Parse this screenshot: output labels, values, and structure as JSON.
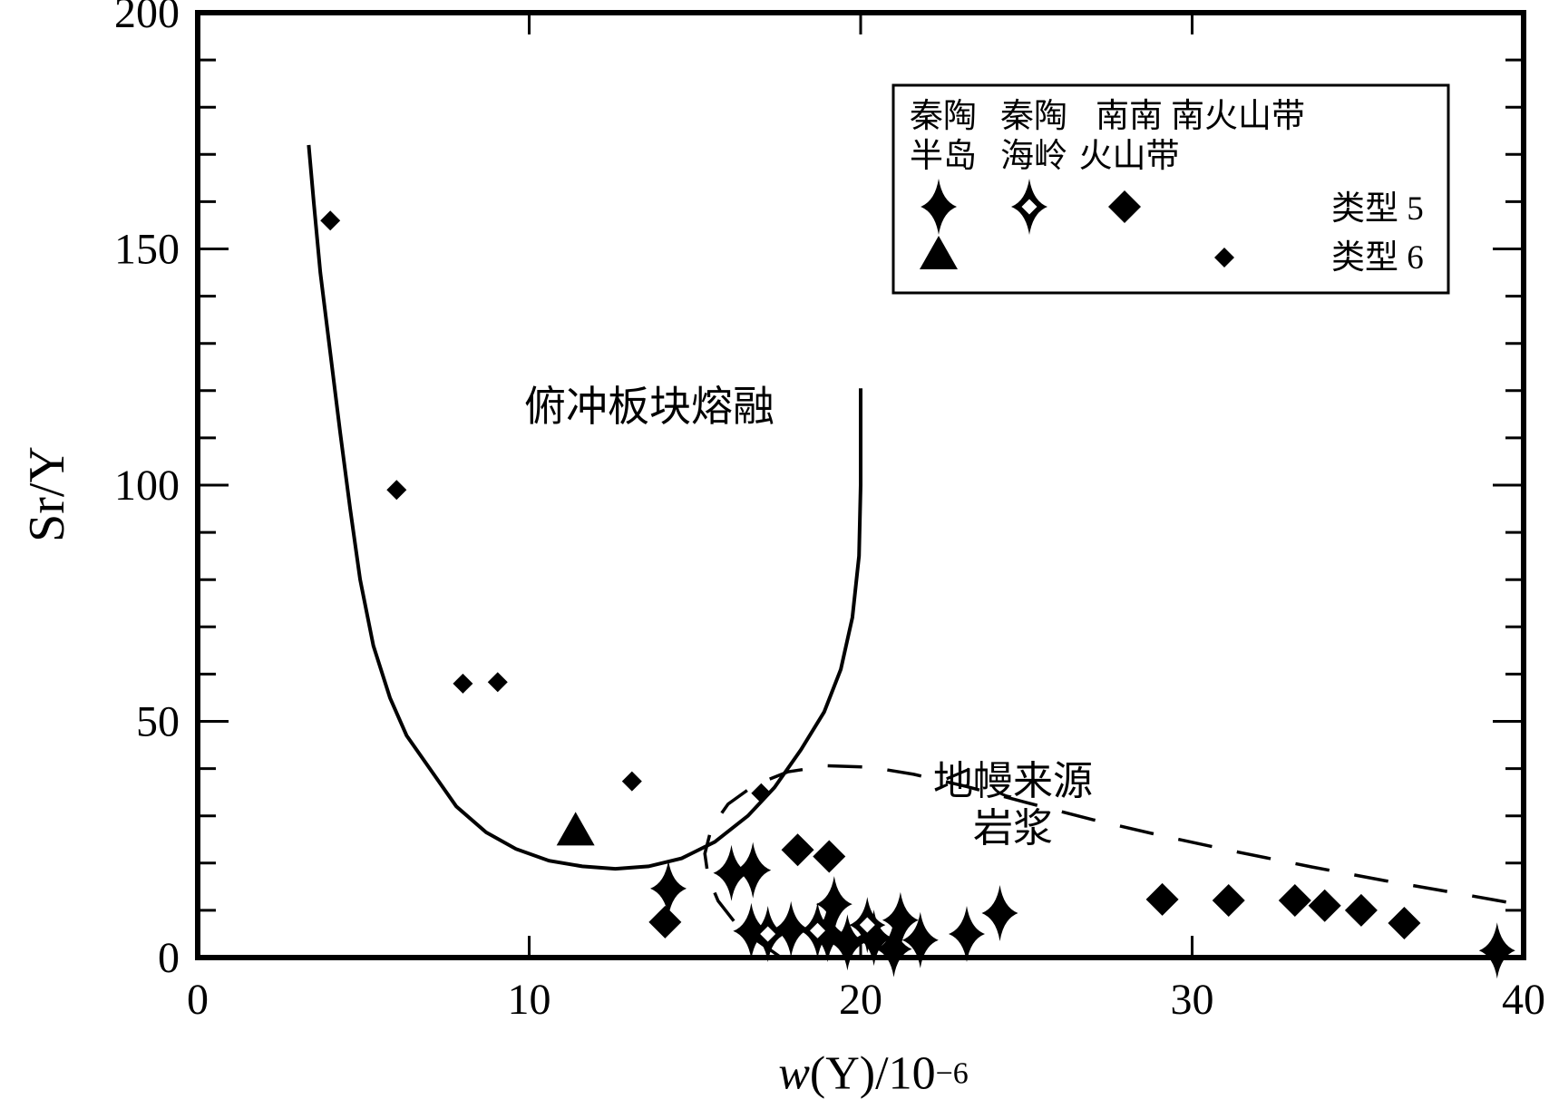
{
  "chart_data": {
    "type": "scatter",
    "title": "",
    "xlabel": {
      "italic": "w",
      "rest": "(Y)/10",
      "sup": "−6"
    },
    "ylabel": "Sr/Y",
    "xlim": [
      0,
      40
    ],
    "ylim": [
      0,
      200
    ],
    "x_ticks": [
      0,
      10,
      20,
      30,
      40
    ],
    "y_ticks": [
      0,
      50,
      100,
      150,
      200
    ],
    "y_minor_step": 10,
    "grid": false,
    "annotations": {
      "subduction_field": "俯冲板块熔融",
      "mantle_field_line1": "地幔来源",
      "mantle_field_line2": "岩浆"
    },
    "series": [
      {
        "name": "秦陶半岛 类型5",
        "symbol": "star-filled",
        "points": [
          [
            14.2,
            14.6
          ],
          [
            16.1,
            17.9
          ],
          [
            16.75,
            18.5
          ],
          [
            16.7,
            5.6
          ],
          [
            17.9,
            6.0
          ],
          [
            19.2,
            11.3
          ],
          [
            19.0,
            5.0
          ],
          [
            19.6,
            3.2
          ],
          [
            20.4,
            4.2
          ],
          [
            21.0,
            1.8
          ],
          [
            21.2,
            7.9
          ],
          [
            21.8,
            3.7
          ],
          [
            23.2,
            5.0
          ],
          [
            24.2,
            9.4
          ],
          [
            39.2,
            1.5
          ]
        ]
      },
      {
        "name": "秦陶海岭 类型5",
        "symbol": "star-open",
        "points": [
          [
            17.2,
            5.0
          ],
          [
            18.7,
            5.7
          ],
          [
            20.2,
            6.9
          ]
        ]
      },
      {
        "name": "南南火山带 类型5",
        "symbol": "diamond-large",
        "points": [
          [
            14.1,
            7.5
          ],
          [
            18.1,
            22.8
          ],
          [
            19.05,
            21.4
          ],
          [
            29.1,
            12.3
          ],
          [
            31.1,
            12.1
          ],
          [
            33.1,
            12.1
          ],
          [
            34.0,
            11.0
          ],
          [
            35.1,
            10.0
          ],
          [
            36.4,
            7.3
          ]
        ]
      },
      {
        "name": "秦陶半岛 类型6",
        "symbol": "triangle",
        "points": [
          [
            11.4,
            26.6
          ]
        ]
      },
      {
        "name": "南火山带 类型6",
        "symbol": "diamond-small",
        "points": [
          [
            4.0,
            156
          ],
          [
            6.0,
            99
          ],
          [
            8.0,
            58
          ],
          [
            9.05,
            58.3
          ],
          [
            13.1,
            37.3
          ],
          [
            17.0,
            34.8
          ]
        ]
      }
    ],
    "curves": [
      {
        "name": "俯冲板块熔融边界",
        "style": "solid",
        "points": [
          [
            3.35,
            172
          ],
          [
            3.5,
            160
          ],
          [
            3.7,
            145
          ],
          [
            4.0,
            128
          ],
          [
            4.3,
            111
          ],
          [
            4.6,
            95
          ],
          [
            4.9,
            80
          ],
          [
            5.3,
            66
          ],
          [
            5.8,
            55
          ],
          [
            6.3,
            47
          ],
          [
            7.0,
            40
          ],
          [
            7.8,
            32
          ],
          [
            8.7,
            26.5
          ],
          [
            9.6,
            23
          ],
          [
            10.6,
            20.5
          ],
          [
            11.6,
            19.3
          ],
          [
            12.6,
            18.8
          ],
          [
            13.6,
            19.3
          ],
          [
            14.6,
            21
          ],
          [
            15.6,
            24.5
          ],
          [
            16.6,
            30
          ],
          [
            17.4,
            36
          ],
          [
            18.2,
            44
          ],
          [
            18.9,
            52
          ],
          [
            19.4,
            61
          ],
          [
            19.75,
            72
          ],
          [
            19.95,
            85
          ],
          [
            20.0,
            100
          ],
          [
            20.0,
            120.5
          ]
        ]
      },
      {
        "name": "地幔来源岩浆边界",
        "style": "dashed",
        "points": [
          [
            17.6,
            0
          ],
          [
            16.9,
            3.5
          ],
          [
            16.2,
            7.5
          ],
          [
            15.7,
            12
          ],
          [
            15.4,
            17
          ],
          [
            15.3,
            22
          ],
          [
            15.5,
            27.5
          ],
          [
            16.0,
            32.5
          ],
          [
            16.8,
            36.5
          ],
          [
            17.8,
            39.3
          ],
          [
            19.0,
            40.6
          ],
          [
            20.3,
            40.3
          ],
          [
            21.6,
            38.8
          ],
          [
            23.2,
            36.2
          ],
          [
            25.0,
            32.8
          ],
          [
            27.0,
            29.2
          ],
          [
            29.2,
            25.6
          ],
          [
            31.4,
            22.3
          ],
          [
            33.6,
            19.2
          ],
          [
            35.8,
            16.3
          ],
          [
            38.0,
            13.6
          ],
          [
            39.6,
            11.6
          ]
        ]
      }
    ]
  },
  "legend": {
    "columns": [
      {
        "lines": [
          "秦陶",
          "半岛"
        ],
        "row1_symbol": "star-filled",
        "row2_symbol": "triangle"
      },
      {
        "lines": [
          "秦陶",
          "海岭"
        ],
        "row1_symbol": "star-open",
        "row2_symbol": null
      },
      {
        "lines": [
          "南南",
          "火山带"
        ],
        "row1_symbol": "diamond-large",
        "row2_symbol": null
      },
      {
        "lines": [
          "南火山带"
        ],
        "row1_symbol": null,
        "row2_symbol": "diamond-small"
      }
    ],
    "type5_label": "类型 5",
    "type6_label": "类型 6"
  },
  "colors": {
    "ink": "#000000",
    "background": "#ffffff"
  }
}
